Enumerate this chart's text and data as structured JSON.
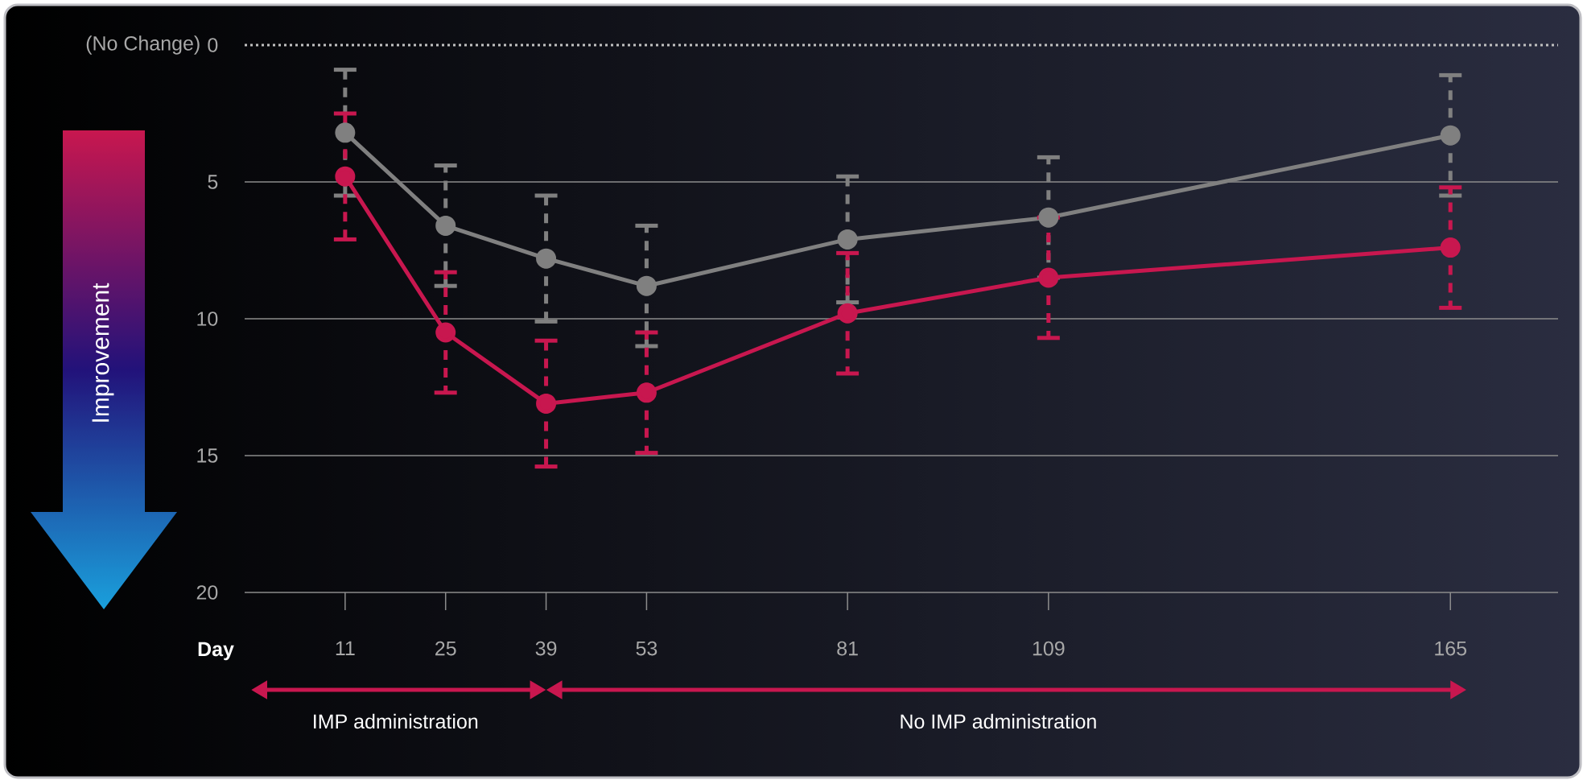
{
  "chart_data": {
    "type": "line",
    "xlabel": "Day",
    "annotations": [
      "Improvement",
      "IMP administration",
      "No IMP administration"
    ],
    "x": [
      11,
      25,
      39,
      53,
      81,
      109,
      165
    ],
    "xlim": [
      -3,
      180
    ],
    "xticks": [
      11,
      25,
      39,
      53,
      81,
      109,
      165
    ],
    "ylim": [
      20,
      0
    ],
    "yticks": [
      0,
      5,
      10,
      15,
      20
    ],
    "grid": "y",
    "marker": "circle",
    "series": [
      {
        "color": "#808080",
        "values": [
          3.2,
          6.6,
          7.8,
          8.8,
          7.1,
          6.3,
          3.3
        ],
        "errors": [
          2.3,
          2.2,
          2.3,
          2.2,
          2.3,
          2.2,
          2.2
        ]
      },
      {
        "color": "#c8174f",
        "values": [
          4.8,
          10.5,
          13.1,
          12.7,
          9.8,
          8.5,
          7.4
        ],
        "errors": [
          2.3,
          2.2,
          2.3,
          2.2,
          2.2,
          2.2,
          2.2
        ]
      }
    ],
    "ref_lines": [
      {
        "axis": "y",
        "value": 0,
        "label": "(No Change)",
        "line_style": "dotted",
        "color": "#c0c0c0"
      }
    ]
  }
}
